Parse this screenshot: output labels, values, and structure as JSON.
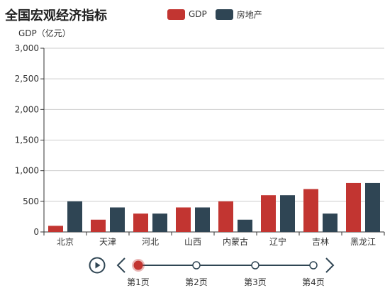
{
  "header": {
    "title": "全国宏观经济指标"
  },
  "colors": {
    "gdp": "#c23531",
    "realestate": "#2f4554",
    "axis": "#333333",
    "grid": "#cccccc"
  },
  "chart_data": {
    "type": "bar",
    "ylabel": "GDP（亿元）",
    "ylim": [
      0,
      3000
    ],
    "yticks": [
      "0",
      "500",
      "1,000",
      "1,500",
      "2,000",
      "2,500",
      "3,000"
    ],
    "ytick_values": [
      0,
      500,
      1000,
      1500,
      2000,
      2500,
      3000
    ],
    "categories": [
      "北京",
      "天津",
      "河北",
      "山西",
      "内蒙古",
      "辽宁",
      "吉林",
      "黑龙江"
    ],
    "series": [
      {
        "name": "GDP",
        "values": [
          100,
          200,
          300,
          400,
          500,
          600,
          700,
          800
        ]
      },
      {
        "name": "房地产",
        "values": [
          500,
          400,
          300,
          400,
          200,
          600,
          300,
          800
        ]
      }
    ],
    "grid": true,
    "legend_position": "top-center"
  },
  "timeline": {
    "pages": [
      "第1页",
      "第2页",
      "第3页",
      "第4页"
    ],
    "current_index": 0,
    "play_icon": "play-icon",
    "prev_icon": "chevron-left-icon",
    "next_icon": "chevron-right-icon"
  }
}
